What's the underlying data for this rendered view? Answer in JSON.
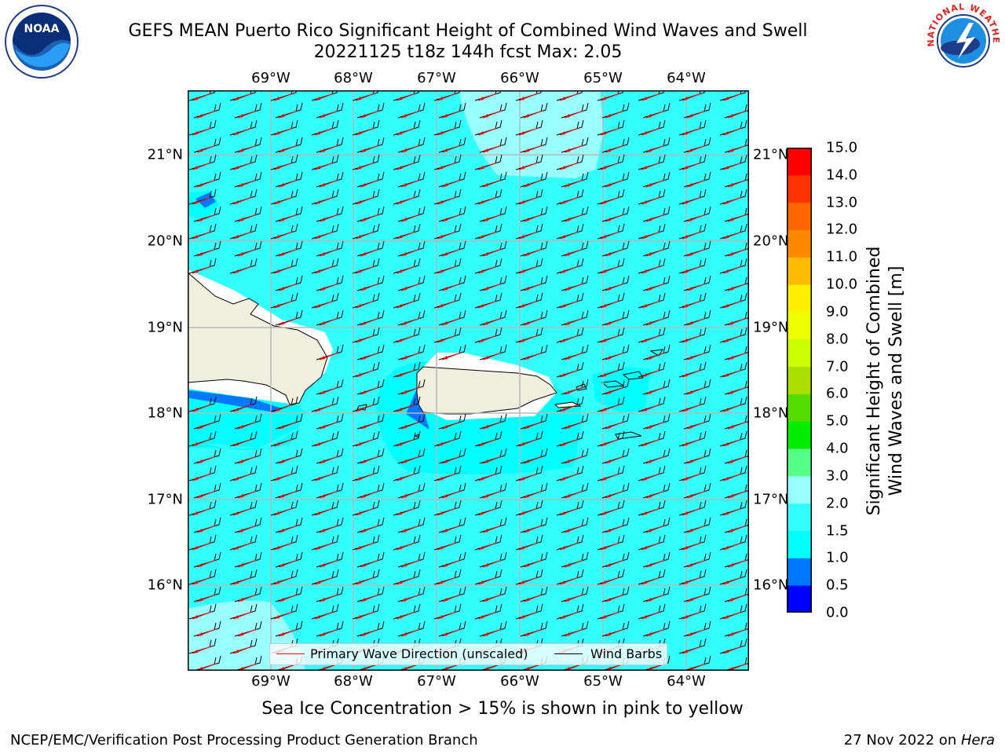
{
  "title_line1": "GEFS MEAN Puerto Rico Significant Height of Combined Wind Waves and Swell",
  "title_line2": "20221125 t18z 144h fcst   Max: 2.05",
  "lon_labels": [
    "69°W",
    "68°W",
    "67°W",
    "66°W",
    "65°W",
    "64°W"
  ],
  "lat_labels": [
    "21°N",
    "20°N",
    "19°N",
    "18°N",
    "17°N",
    "16°N"
  ],
  "colorbar": {
    "label_line1": "Significant Height of Combined",
    "label_line2": "Wind Waves and Swell [m]",
    "ticks": [
      "0.0",
      "0.5",
      "1.0",
      "1.5",
      "2.0",
      "3.0",
      "4.0",
      "5.0",
      "6.0",
      "7.0",
      "8.0",
      "9.0",
      "10.0",
      "11.0",
      "12.0",
      "13.0",
      "14.0",
      "15.0"
    ],
    "colors": [
      "#0000ff",
      "#0077ff",
      "#00ffff",
      "#33ffff",
      "#99ffff",
      "#55ff88",
      "#00ee00",
      "#55dd00",
      "#aadd00",
      "#ccff00",
      "#eeff00",
      "#ffee00",
      "#ffbb00",
      "#ff8800",
      "#ff6600",
      "#ff3300",
      "#ff0000"
    ]
  },
  "legend": {
    "wave_label": "Primary Wave Direction (unscaled)",
    "barb_label": "Wind Barbs",
    "wave_color": "#ff0000",
    "barb_color": "#000000"
  },
  "note": "Sea Ice Concentration > 15% is shown in pink to yellow",
  "footer_left": "NCEP/EMC/Verification Post Processing Product Generation Branch",
  "footer_right_prefix": "27 Nov 2022 on ",
  "footer_right_host": "Hera",
  "logos": {
    "left_text": "NOAA",
    "right_text": "NATIONAL WEATHER SERVICE"
  },
  "map_colors": {
    "ocean": "#33ffff",
    "calm": "#00ffff",
    "rough": "#aaffff",
    "land": "#f0eedc",
    "deep": "#0077ff"
  }
}
